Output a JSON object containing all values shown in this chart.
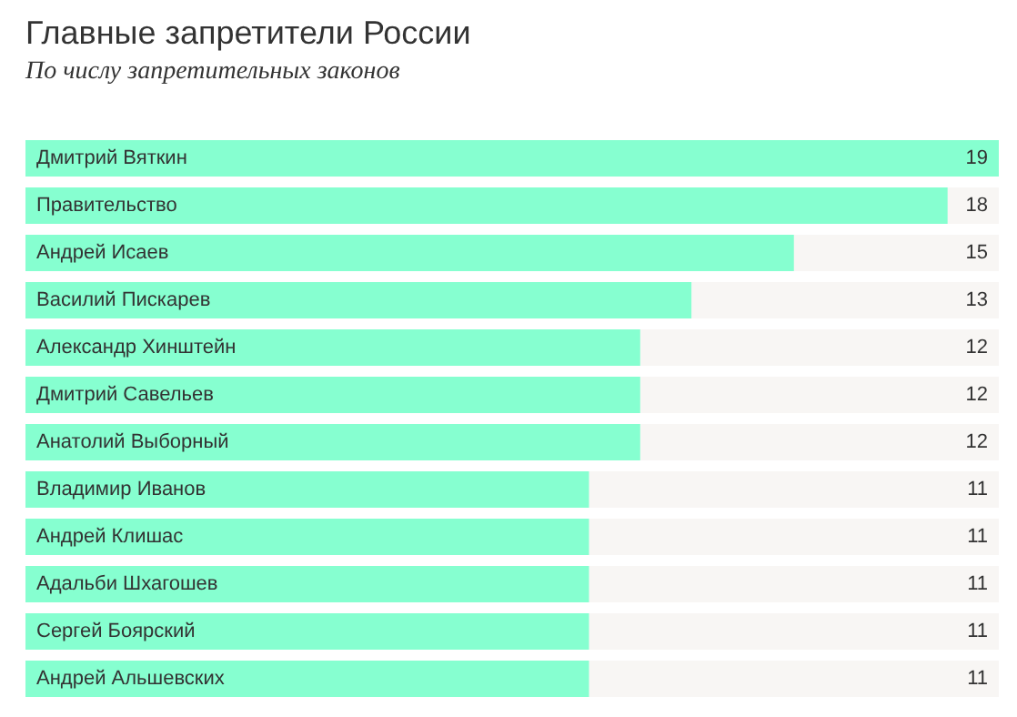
{
  "chart_data": {
    "type": "bar",
    "orientation": "horizontal",
    "title": "Главные запретители России",
    "subtitle": "По числу запретительных законов",
    "categories": [
      "Дмитрий Вяткин",
      "Правительство",
      "Андрей Исаев",
      "Василий Пискарев",
      "Александр Хинштейн",
      "Дмитрий Савельев",
      "Анатолий Выборный",
      "Владимир Иванов",
      "Андрей Клишас",
      "Адальби Шхагошев",
      "Сергей Боярский",
      "Андрей Альшевских"
    ],
    "values": [
      19,
      18,
      15,
      13,
      12,
      12,
      12,
      11,
      11,
      11,
      11,
      11
    ],
    "color": "#86ffd0",
    "data_labels": true
  }
}
